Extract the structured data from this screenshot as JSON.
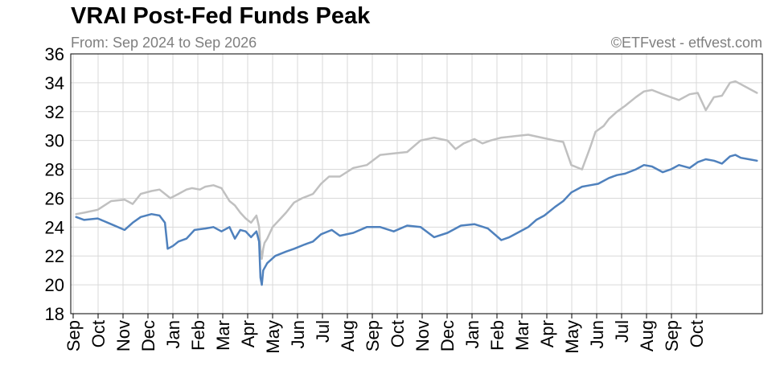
{
  "header": {
    "title": "VRAI Post-Fed Funds Peak",
    "subtitle": "From: Sep 2024 to Sep 2026",
    "credit": "©ETFvest - etfvest.com"
  },
  "chart_data": {
    "type": "line",
    "title": "VRAI Post-Fed Funds Peak",
    "subtitle": "From: Sep 2024 to Sep 2026",
    "xlabel": "",
    "ylabel": "",
    "ylim": [
      18,
      36
    ],
    "yticks": [
      18,
      20,
      22,
      24,
      26,
      28,
      30,
      32,
      34,
      36
    ],
    "xticks": [
      "Sep",
      "Oct",
      "Nov",
      "Dec",
      "Jan",
      "Feb",
      "Mar",
      "Apr",
      "May",
      "Jun",
      "Jul",
      "Aug",
      "Sep",
      "Oct",
      "Nov",
      "Dec",
      "Jan",
      "Feb",
      "Mar",
      "Apr",
      "May",
      "Jun",
      "Jul",
      "Aug",
      "Sep",
      "Oct"
    ],
    "xrange_months": [
      0,
      25.7
    ],
    "grid": true,
    "legend": "none",
    "series": [
      {
        "color": "#c0c0c0",
        "x": [
          0.2,
          0.5,
          1.0,
          1.5,
          2.0,
          2.3,
          2.6,
          3.0,
          3.3,
          3.7,
          4.0,
          4.3,
          4.5,
          4.8,
          5.0,
          5.3,
          5.6,
          5.9,
          6.1,
          6.3,
          6.5,
          6.7,
          6.9,
          7.0,
          7.05,
          7.1,
          7.15,
          7.2,
          7.3,
          7.5,
          7.8,
          8.0,
          8.3,
          8.6,
          9.0,
          9.3,
          9.6,
          10.0,
          10.5,
          11.0,
          11.5,
          12.0,
          12.5,
          13.0,
          13.5,
          14.0,
          14.3,
          14.6,
          15.0,
          15.3,
          15.6,
          16.0,
          16.5,
          17.0,
          17.5,
          18.0,
          18.3,
          18.6,
          19.0,
          19.2,
          19.3,
          19.5,
          19.8,
          20.0,
          20.3,
          20.6,
          21.0,
          21.3,
          21.6,
          22.0,
          22.3,
          22.6,
          23.0,
          23.3,
          23.6,
          23.9,
          24.2,
          24.5,
          24.7,
          24.9,
          25.2,
          25.5
        ],
        "y": [
          24.9,
          25.0,
          25.2,
          25.8,
          25.9,
          25.6,
          26.3,
          26.5,
          26.6,
          26.0,
          26.3,
          26.6,
          26.7,
          26.6,
          26.8,
          26.9,
          26.7,
          25.8,
          25.5,
          25.0,
          24.6,
          24.3,
          24.8,
          24.0,
          22.5,
          21.8,
          22.5,
          22.9,
          23.2,
          24.0,
          24.6,
          25.0,
          25.7,
          26.0,
          26.3,
          27.0,
          27.5,
          27.5,
          28.1,
          28.3,
          29.0,
          29.1,
          29.2,
          30.0,
          30.2,
          30.0,
          29.4,
          29.8,
          30.1,
          29.8,
          30.0,
          30.2,
          30.3,
          30.4,
          30.2,
          30.0,
          29.9,
          28.3,
          28.0,
          29.0,
          29.5,
          30.6,
          31.0,
          31.5,
          32.0,
          32.4,
          33.0,
          33.4,
          33.5,
          33.2,
          33.0,
          32.8,
          33.2,
          33.3,
          32.1,
          33.0,
          33.1,
          34.0,
          34.1,
          33.9,
          33.6,
          33.3
        ]
      },
      {
        "color": "#4f81bd",
        "x": [
          0.2,
          0.5,
          1.0,
          1.5,
          2.0,
          2.3,
          2.6,
          3.0,
          3.3,
          3.5,
          3.6,
          3.8,
          4.0,
          4.3,
          4.6,
          5.0,
          5.3,
          5.6,
          5.9,
          6.1,
          6.3,
          6.5,
          6.7,
          6.9,
          7.0,
          7.05,
          7.1,
          7.15,
          7.3,
          7.6,
          8.0,
          8.3,
          8.7,
          9.0,
          9.3,
          9.7,
          10.0,
          10.5,
          11.0,
          11.5,
          12.0,
          12.5,
          13.0,
          13.5,
          14.0,
          14.5,
          15.0,
          15.5,
          16.0,
          16.3,
          16.6,
          17.0,
          17.3,
          17.6,
          18.0,
          18.3,
          18.6,
          19.0,
          19.3,
          19.6,
          20.0,
          20.3,
          20.6,
          21.0,
          21.3,
          21.6,
          22.0,
          22.3,
          22.6,
          23.0,
          23.3,
          23.6,
          23.9,
          24.2,
          24.5,
          24.7,
          24.9,
          25.2,
          25.5
        ],
        "y": [
          24.7,
          24.5,
          24.6,
          24.2,
          23.8,
          24.3,
          24.7,
          24.9,
          24.8,
          24.3,
          22.5,
          22.7,
          23.0,
          23.2,
          23.8,
          23.9,
          24.0,
          23.7,
          24.0,
          23.2,
          23.8,
          23.7,
          23.3,
          23.7,
          23.0,
          20.5,
          20.0,
          21.0,
          21.5,
          22.0,
          22.3,
          22.5,
          22.8,
          23.0,
          23.5,
          23.8,
          23.4,
          23.6,
          24.0,
          24.0,
          23.7,
          24.1,
          24.0,
          23.3,
          23.6,
          24.1,
          24.2,
          23.9,
          23.1,
          23.3,
          23.6,
          24.0,
          24.5,
          24.8,
          25.4,
          25.8,
          26.4,
          26.8,
          26.9,
          27.0,
          27.4,
          27.6,
          27.7,
          28.0,
          28.3,
          28.2,
          27.8,
          28.0,
          28.3,
          28.1,
          28.5,
          28.7,
          28.6,
          28.4,
          28.9,
          29.0,
          28.8,
          28.7,
          28.6
        ]
      }
    ]
  }
}
